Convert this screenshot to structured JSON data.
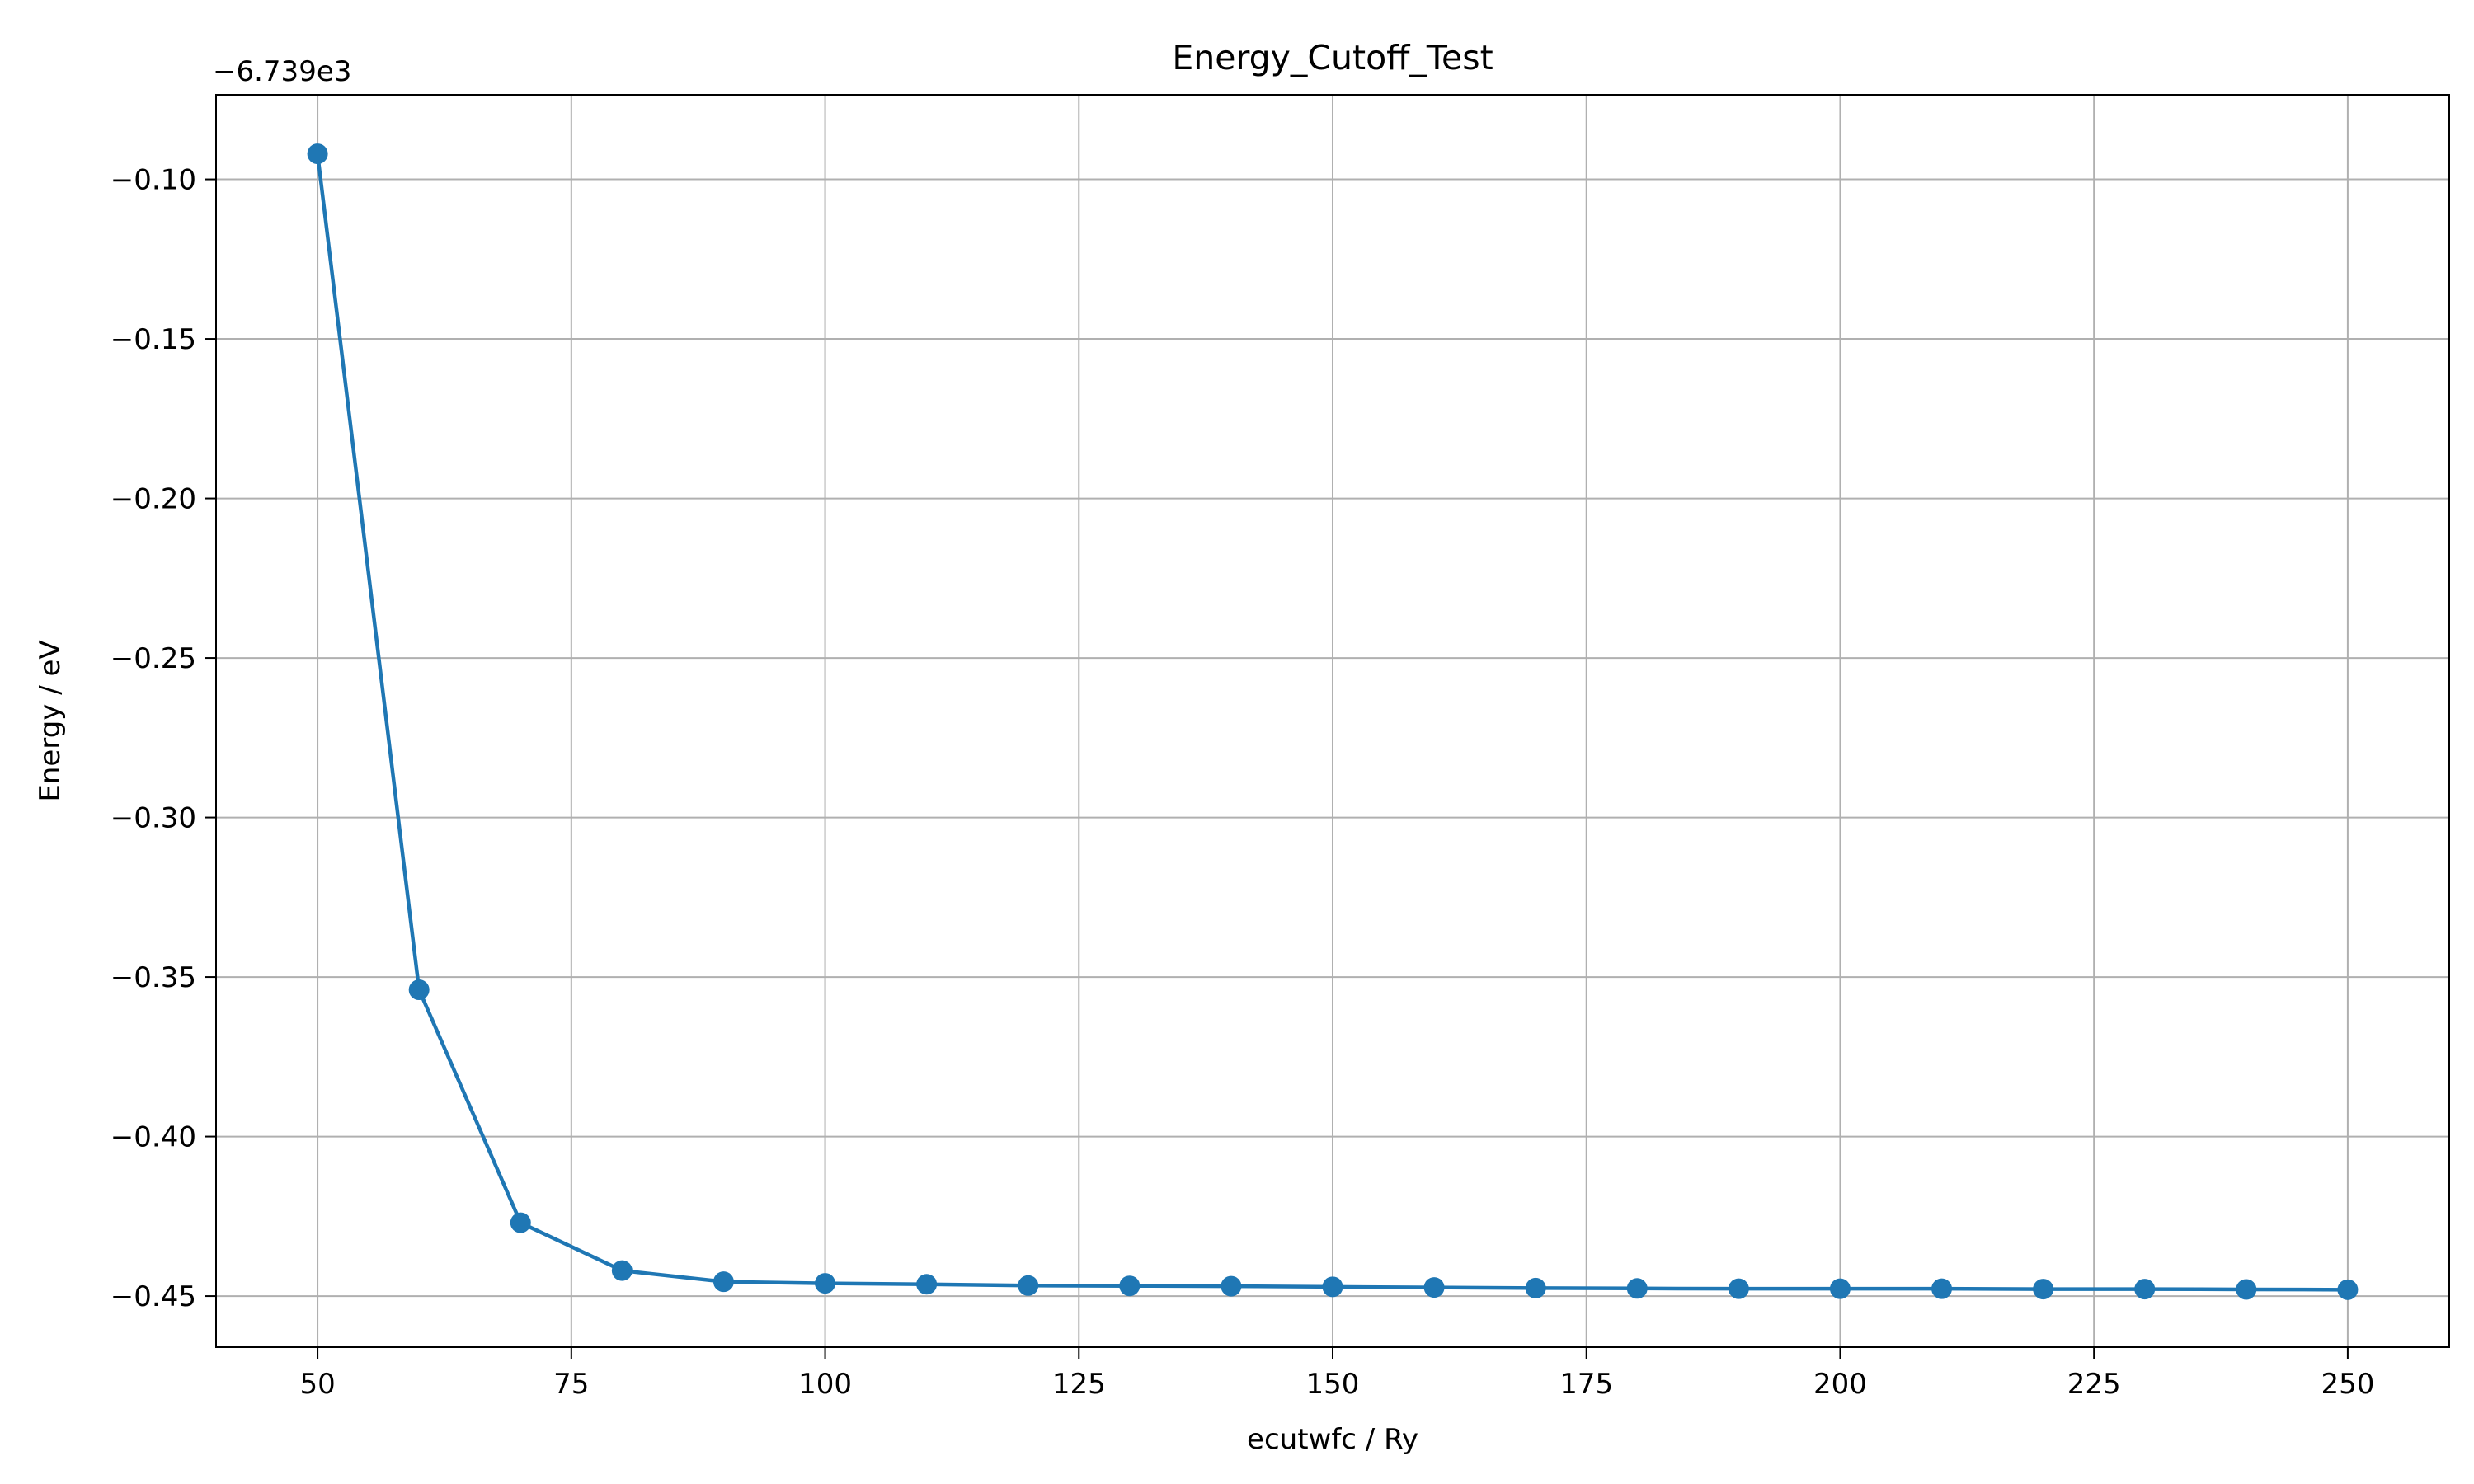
{
  "chart_data": {
    "type": "line",
    "title": "Energy_Cutoff_Test",
    "xlabel": "ecutwfc / Ry",
    "ylabel": "Energy / eV",
    "offset_label": "−6.739e3",
    "xlim": [
      40,
      260
    ],
    "ylim": [
      -0.466,
      -0.0735
    ],
    "xticks": [
      50,
      75,
      100,
      125,
      150,
      175,
      200,
      225,
      250
    ],
    "yticks": [
      -0.1,
      -0.15,
      -0.2,
      -0.25,
      -0.3,
      -0.35,
      -0.4,
      -0.45
    ],
    "xtick_labels": [
      "50",
      "75",
      "100",
      "125",
      "150",
      "175",
      "200",
      "225",
      "250"
    ],
    "ytick_labels": [
      "−0.10",
      "−0.15",
      "−0.20",
      "−0.25",
      "−0.30",
      "−0.35",
      "−0.40",
      "−0.45"
    ],
    "grid": true,
    "color": "#1f77b4",
    "x": [
      50,
      60,
      70,
      80,
      90,
      100,
      110,
      120,
      130,
      140,
      150,
      160,
      170,
      180,
      190,
      200,
      210,
      220,
      230,
      240,
      250
    ],
    "y": [
      -0.092,
      -0.354,
      -0.427,
      -0.442,
      -0.4455,
      -0.446,
      -0.4463,
      -0.4467,
      -0.4468,
      -0.4469,
      -0.4471,
      -0.4473,
      -0.4475,
      -0.4476,
      -0.4477,
      -0.4477,
      -0.4477,
      -0.4478,
      -0.4478,
      -0.4479,
      -0.448
    ]
  }
}
